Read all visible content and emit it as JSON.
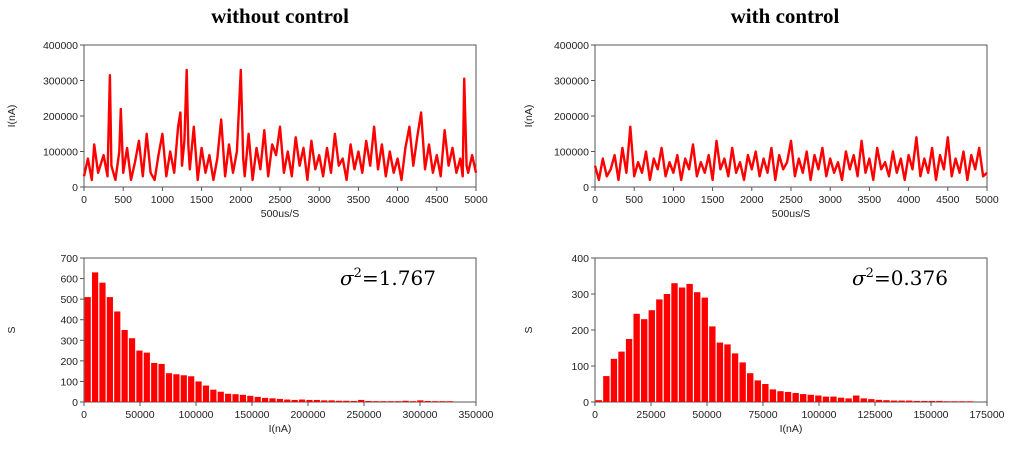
{
  "columns": [
    {
      "title": "without control"
    },
    {
      "title": "with control"
    }
  ],
  "chart_data": [
    {
      "type": "line",
      "position": "top-left",
      "xlabel": "500us/S",
      "ylabel": "I(nA)",
      "xlim": [
        0,
        5000
      ],
      "ylim": [
        0,
        400000
      ],
      "xticks": [
        0,
        500,
        1000,
        1500,
        2000,
        2500,
        3000,
        3500,
        4000,
        4500,
        5000
      ],
      "yticks": [
        0,
        100000,
        200000,
        300000,
        400000
      ],
      "color": "#ff0000",
      "series": [
        {
          "x": [
            0,
            50,
            100,
            130,
            180,
            250,
            300,
            330,
            350,
            400,
            450,
            470,
            500,
            550,
            600,
            650,
            700,
            750,
            800,
            850,
            900,
            950,
            1000,
            1050,
            1100,
            1150,
            1200,
            1230,
            1250,
            1280,
            1310,
            1330,
            1350,
            1400,
            1450,
            1500,
            1550,
            1600,
            1650,
            1700,
            1750,
            1800,
            1850,
            1900,
            1950,
            2000,
            2030,
            2050,
            2100,
            2150,
            2200,
            2250,
            2300,
            2350,
            2400,
            2450,
            2500,
            2550,
            2600,
            2650,
            2700,
            2750,
            2800,
            2850,
            2900,
            2950,
            3000,
            3050,
            3100,
            3150,
            3200,
            3250,
            3300,
            3350,
            3400,
            3450,
            3500,
            3550,
            3600,
            3650,
            3700,
            3750,
            3800,
            3850,
            3900,
            3950,
            4000,
            4050,
            4100,
            4150,
            4200,
            4250,
            4300,
            4350,
            4400,
            4450,
            4500,
            4550,
            4600,
            4650,
            4700,
            4750,
            4800,
            4830,
            4850,
            4880,
            4900,
            4950,
            5000
          ],
          "y": [
            30000,
            80000,
            20000,
            120000,
            40000,
            90000,
            30000,
            315000,
            60000,
            20000,
            100000,
            220000,
            40000,
            110000,
            20000,
            70000,
            130000,
            30000,
            150000,
            40000,
            20000,
            90000,
            150000,
            30000,
            100000,
            40000,
            170000,
            210000,
            60000,
            130000,
            330000,
            120000,
            50000,
            170000,
            20000,
            110000,
            40000,
            90000,
            20000,
            80000,
            190000,
            30000,
            120000,
            40000,
            100000,
            330000,
            80000,
            30000,
            150000,
            20000,
            110000,
            50000,
            160000,
            30000,
            120000,
            90000,
            170000,
            40000,
            100000,
            30000,
            140000,
            60000,
            110000,
            20000,
            130000,
            50000,
            90000,
            30000,
            110000,
            40000,
            150000,
            60000,
            80000,
            20000,
            120000,
            50000,
            100000,
            40000,
            130000,
            60000,
            170000,
            50000,
            120000,
            30000,
            100000,
            40000,
            80000,
            20000,
            110000,
            170000,
            60000,
            140000,
            210000,
            50000,
            120000,
            40000,
            90000,
            30000,
            160000,
            60000,
            110000,
            40000,
            80000,
            30000,
            305000,
            60000,
            40000,
            90000,
            40000
          ]
        }
      ]
    },
    {
      "type": "line",
      "position": "top-right",
      "xlabel": "500us/S",
      "ylabel": "I(nA)",
      "xlim": [
        0,
        5000
      ],
      "ylim": [
        0,
        400000
      ],
      "xticks": [
        0,
        500,
        1000,
        1500,
        2000,
        2500,
        3000,
        3500,
        4000,
        4500,
        5000
      ],
      "yticks": [
        0,
        100000,
        200000,
        300000,
        400000
      ],
      "color": "#ff0000",
      "series": [
        {
          "x": [
            0,
            50,
            100,
            150,
            200,
            250,
            300,
            350,
            400,
            450,
            500,
            550,
            600,
            650,
            700,
            750,
            800,
            850,
            900,
            950,
            1000,
            1050,
            1100,
            1150,
            1200,
            1250,
            1300,
            1350,
            1400,
            1450,
            1500,
            1550,
            1600,
            1650,
            1700,
            1750,
            1800,
            1850,
            1900,
            1950,
            2000,
            2050,
            2100,
            2150,
            2200,
            2250,
            2300,
            2350,
            2400,
            2450,
            2500,
            2550,
            2600,
            2650,
            2700,
            2750,
            2800,
            2850,
            2900,
            2950,
            3000,
            3050,
            3100,
            3150,
            3200,
            3250,
            3300,
            3350,
            3400,
            3450,
            3500,
            3550,
            3600,
            3650,
            3700,
            3750,
            3800,
            3850,
            3900,
            3950,
            4000,
            4050,
            4100,
            4150,
            4200,
            4250,
            4300,
            4350,
            4400,
            4450,
            4500,
            4550,
            4600,
            4650,
            4700,
            4750,
            4800,
            4850,
            4900,
            4950,
            5000
          ],
          "y": [
            60000,
            20000,
            80000,
            30000,
            50000,
            90000,
            20000,
            110000,
            40000,
            170000,
            30000,
            70000,
            40000,
            100000,
            20000,
            80000,
            50000,
            110000,
            30000,
            70000,
            40000,
            90000,
            20000,
            80000,
            50000,
            120000,
            30000,
            70000,
            40000,
            90000,
            20000,
            130000,
            50000,
            80000,
            30000,
            110000,
            40000,
            70000,
            20000,
            90000,
            50000,
            100000,
            30000,
            80000,
            40000,
            110000,
            20000,
            90000,
            50000,
            70000,
            130000,
            30000,
            80000,
            40000,
            100000,
            20000,
            90000,
            50000,
            110000,
            30000,
            80000,
            40000,
            70000,
            20000,
            100000,
            50000,
            90000,
            30000,
            130000,
            40000,
            80000,
            20000,
            110000,
            50000,
            70000,
            30000,
            100000,
            40000,
            80000,
            20000,
            90000,
            50000,
            140000,
            30000,
            80000,
            40000,
            110000,
            20000,
            90000,
            50000,
            140000,
            30000,
            80000,
            40000,
            100000,
            20000,
            90000,
            50000,
            110000,
            30000,
            40000
          ]
        }
      ]
    },
    {
      "type": "bar",
      "position": "bottom-left",
      "xlabel": "I(nA)",
      "ylabel": "S",
      "xlim": [
        0,
        350000
      ],
      "ylim": [
        0,
        700
      ],
      "xticks": [
        0,
        50000,
        100000,
        150000,
        200000,
        250000,
        300000,
        350000
      ],
      "yticks": [
        0,
        100,
        200,
        300,
        400,
        500,
        600,
        700
      ],
      "bin_width": 6600,
      "bin_starts": [
        0,
        6600,
        13200,
        19800,
        26400,
        33000,
        39600,
        46200,
        52800,
        59400,
        66000,
        72600,
        79200,
        85800,
        92400,
        99000,
        105600,
        112200,
        118800,
        125400,
        132000,
        138600,
        145200,
        151800,
        158400,
        165000,
        171600,
        178200,
        184800,
        191400,
        198000,
        204600,
        211200,
        217800,
        224400,
        231000,
        237600,
        244200,
        250800,
        257400,
        264000,
        270600,
        277200,
        283800,
        290400,
        297000,
        303600,
        310200,
        316800,
        323400
      ],
      "values": [
        510,
        630,
        580,
        510,
        440,
        350,
        310,
        250,
        240,
        190,
        185,
        140,
        135,
        130,
        125,
        100,
        80,
        60,
        50,
        40,
        38,
        35,
        30,
        25,
        20,
        18,
        15,
        12,
        10,
        12,
        10,
        10,
        8,
        8,
        6,
        6,
        5,
        10,
        5,
        4,
        4,
        4,
        4,
        6,
        4,
        8,
        5,
        4,
        4,
        4
      ],
      "color": "#ff0000",
      "annotation": "=1.767"
    },
    {
      "type": "bar",
      "position": "bottom-right",
      "xlabel": "I(nA)",
      "ylabel": "S",
      "xlim": [
        0,
        175000
      ],
      "ylim": [
        0,
        400
      ],
      "xticks": [
        0,
        25000,
        50000,
        75000,
        100000,
        125000,
        150000,
        175000
      ],
      "yticks": [
        0,
        100,
        200,
        300,
        400
      ],
      "bin_width": 3380,
      "bin_starts": [
        0,
        3380,
        6760,
        10140,
        13520,
        16900,
        20280,
        23660,
        27040,
        30420,
        33800,
        37180,
        40560,
        43940,
        47320,
        50700,
        54080,
        57460,
        60840,
        64220,
        67600,
        70980,
        74360,
        77740,
        81120,
        84500,
        87880,
        91260,
        94640,
        98020,
        101400,
        104780,
        108160,
        111540,
        114920,
        118300,
        121680,
        125060,
        128440,
        131820,
        135200,
        138580,
        141960,
        145340,
        148720,
        152100,
        155480,
        158860,
        162240,
        165620
      ],
      "values": [
        5,
        72,
        120,
        140,
        175,
        245,
        230,
        255,
        285,
        300,
        330,
        318,
        328,
        305,
        290,
        210,
        165,
        160,
        135,
        110,
        80,
        60,
        50,
        35,
        30,
        28,
        25,
        22,
        20,
        18,
        15,
        15,
        12,
        10,
        18,
        10,
        8,
        6,
        5,
        4,
        4,
        4,
        3,
        3,
        3,
        3,
        2,
        2,
        2,
        2
      ],
      "color": "#ff0000",
      "annotation": "=0.376"
    }
  ]
}
